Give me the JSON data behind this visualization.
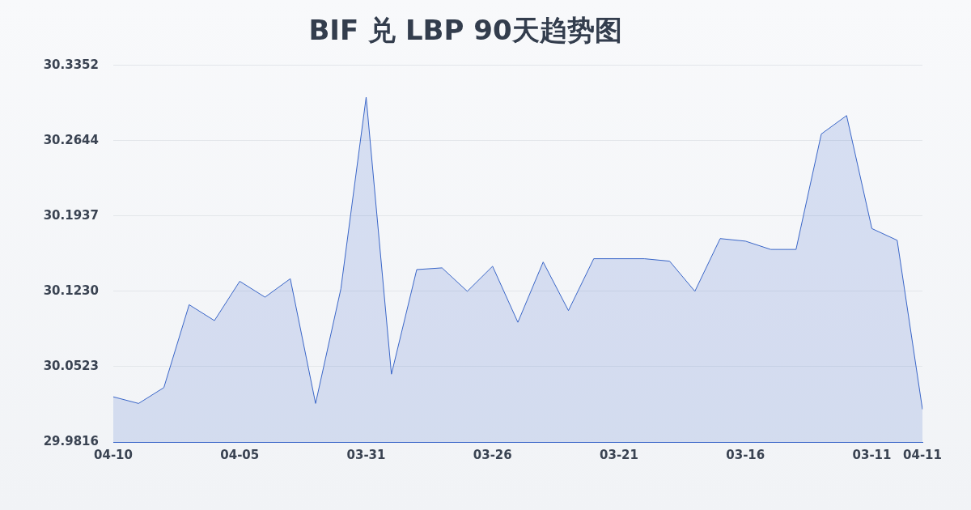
{
  "chart_data": {
    "type": "area",
    "title": "BIF 兑 LBP 90天趋势图",
    "categories": [
      "04-10",
      null,
      null,
      null,
      null,
      "04-05",
      null,
      null,
      null,
      null,
      "03-31",
      null,
      null,
      null,
      null,
      "03-26",
      null,
      null,
      null,
      null,
      "03-21",
      null,
      null,
      null,
      null,
      "03-16",
      null,
      null,
      null,
      null,
      "03-11",
      null,
      "04-11"
    ],
    "series": [
      {
        "color": "#3a66c8",
        "values": [
          30.024,
          30.0178,
          30.0327,
          30.1105,
          30.0956,
          30.1325,
          30.1176,
          30.1349,
          30.0178,
          30.1254,
          30.3054,
          30.0453,
          30.1435,
          30.1451,
          30.1231,
          30.1466,
          30.094,
          30.1506,
          30.105,
          30.1537,
          30.1537,
          30.1537,
          30.1514,
          30.1231,
          30.1726,
          30.1702,
          30.1624,
          30.1624,
          30.2708,
          30.2881,
          30.182,
          30.171,
          30.0123
        ]
      }
    ],
    "ylim": [
      29.9816,
      30.3352
    ],
    "yticks": [
      {
        "value": 29.9816,
        "label": "29.9816"
      },
      {
        "value": 30.0523,
        "label": "30.0523"
      },
      {
        "value": 30.123,
        "label": "30.1230"
      },
      {
        "value": 30.1937,
        "label": "30.1937"
      },
      {
        "value": 30.2644,
        "label": "30.2644"
      },
      {
        "value": 30.3352,
        "label": "30.3352"
      }
    ],
    "grid": "y",
    "legend": false,
    "marker": "none",
    "line_style": "solid"
  }
}
